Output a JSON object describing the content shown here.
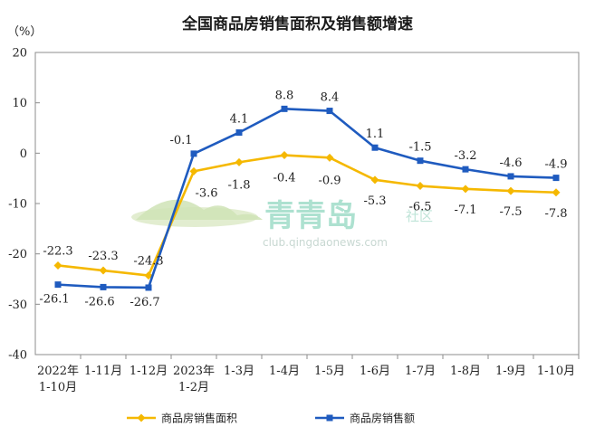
{
  "title": "全国商品房销售面积及销售额增速",
  "watermark": {
    "brand": "青青岛",
    "suffix": "社区",
    "url": "club.qingdaonews.com"
  },
  "chart_data": {
    "type": "line",
    "title": "全国商品房销售面积及销售额增速",
    "unit": "（%）",
    "categories": [
      [
        "2022年",
        "1-10月"
      ],
      [
        "1-11月"
      ],
      [
        "1-12月"
      ],
      [
        "2023年",
        "1-2月"
      ],
      [
        "1-3月"
      ],
      [
        "1-4月"
      ],
      [
        "1-5月"
      ],
      [
        "1-6月"
      ],
      [
        "1-7月"
      ],
      [
        "1-8月"
      ],
      [
        "1-9月"
      ],
      [
        "1-10月"
      ]
    ],
    "series": [
      {
        "name": "商品房销售面积",
        "color": "#f5b800",
        "marker": "diamond",
        "values": [
          -22.3,
          -23.3,
          -24.3,
          -3.6,
          -1.8,
          -0.4,
          -0.9,
          -5.3,
          -6.5,
          -7.1,
          -7.5,
          -7.8
        ]
      },
      {
        "name": "商品房销售额",
        "color": "#1f5bbf",
        "marker": "square",
        "values": [
          -26.1,
          -26.6,
          -26.7,
          -0.1,
          4.1,
          8.8,
          8.4,
          1.1,
          -1.5,
          -3.2,
          -4.6,
          -4.9
        ]
      }
    ],
    "ylim": [
      -40,
      20
    ],
    "yticks": [
      20,
      10,
      0,
      -10,
      -20,
      -30,
      -40
    ],
    "grid": false,
    "legend": "bottom"
  }
}
